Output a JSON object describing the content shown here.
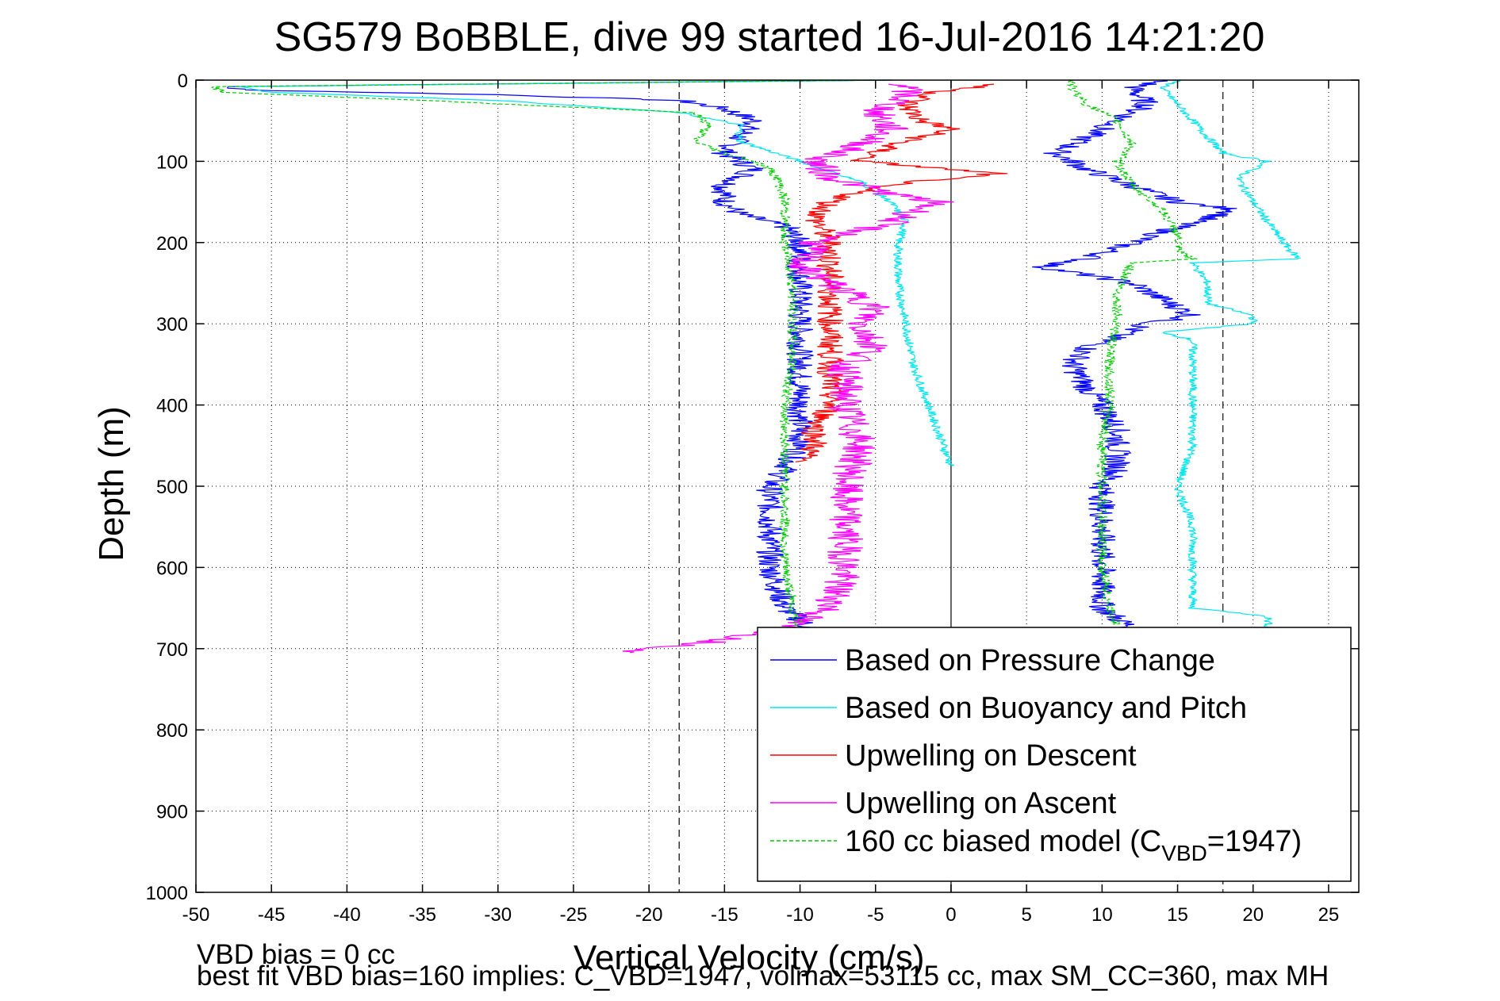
{
  "chart_data": {
    "type": "line",
    "title": "SG579 BoBBLE, dive 99 started 16-Jul-2016 14:21:20",
    "xlabel": "Vertical Velocity (cm/s)",
    "ylabel": "Depth (m)",
    "xlim": [
      -50,
      27
    ],
    "ylim": [
      0,
      1000
    ],
    "y_reversed": true,
    "grid": true,
    "x_ticks": [
      -50,
      -45,
      -40,
      -35,
      -30,
      -25,
      -20,
      -15,
      -10,
      -5,
      0,
      5,
      10,
      15,
      20,
      25
    ],
    "y_ticks": [
      0,
      100,
      200,
      300,
      400,
      500,
      600,
      700,
      800,
      900,
      1000
    ],
    "reference_lines": {
      "vertical_dashed": [
        -18,
        18
      ],
      "vertical_solid": [
        0
      ]
    },
    "legend_position": "lower-right",
    "series": [
      {
        "name": "Based on Pressure Change",
        "color": "#0000ff",
        "style": "solid",
        "jitter": 0.9,
        "descent": {
          "depth": [
            0,
            8,
            12,
            18,
            25,
            35,
            50,
            70,
            90,
            100,
            110,
            130,
            150,
            165,
            180,
            200,
            250,
            300,
            350,
            400,
            450,
            480,
            500,
            550,
            600,
            650,
            680
          ],
          "velocity": [
            -4,
            -48,
            -47,
            -30,
            -18,
            -15,
            -13,
            -14,
            -15,
            -14,
            -13,
            -15,
            -15,
            -14,
            -11,
            -10,
            -10,
            -10,
            -10,
            -10,
            -10,
            -11,
            -12,
            -12,
            -12,
            -11,
            -9
          ]
        },
        "ascent": {
          "depth": [
            0,
            10,
            30,
            50,
            70,
            90,
            110,
            130,
            150,
            160,
            175,
            200,
            220,
            230,
            250,
            270,
            290,
            300,
            330,
            350,
            380,
            400,
            430,
            450,
            480,
            500,
            550,
            600,
            650,
            675
          ],
          "velocity": [
            14,
            12,
            13,
            11,
            9,
            7,
            9,
            12,
            15,
            19,
            16,
            12,
            9,
            6,
            12,
            14,
            16,
            13,
            9,
            8,
            9,
            10,
            11,
            11,
            11,
            10,
            10,
            10,
            10,
            12
          ]
        }
      },
      {
        "name": "Based on Buoyancy and Pitch",
        "color": "#00e5ee",
        "style": "solid",
        "jitter": 0.3,
        "descent": {
          "depth": [
            0,
            8,
            15,
            25,
            40,
            55,
            75,
            100,
            125,
            150,
            175,
            200,
            250,
            300,
            350,
            400,
            450,
            475
          ],
          "velocity": [
            -4,
            -47,
            -45,
            -30,
            -18,
            -14,
            -14,
            -10,
            -6,
            -4,
            -3,
            -3.5,
            -3.5,
            -3,
            -2.5,
            -1.5,
            -0.5,
            0
          ]
        },
        "ascent": {
          "depth": [
            0,
            10,
            30,
            50,
            70,
            90,
            100,
            120,
            150,
            175,
            200,
            220,
            225,
            250,
            275,
            290,
            300,
            310,
            320,
            350,
            400,
            450,
            500,
            550,
            600,
            650,
            660,
            680
          ],
          "velocity": [
            15,
            14,
            15,
            16,
            17,
            18,
            21,
            19,
            20,
            21,
            22,
            23,
            16,
            17,
            17,
            20,
            20,
            14,
            16,
            16,
            16,
            16,
            15,
            16,
            16,
            16,
            21,
            21
          ]
        }
      },
      {
        "name": "Upwelling on Descent",
        "color": "#ff0000",
        "style": "solid",
        "jitter": 0.9,
        "descent": {
          "depth": [
            5,
            15,
            30,
            50,
            60,
            80,
            100,
            110,
            115,
            130,
            150,
            170,
            200,
            250,
            300,
            350,
            400,
            430,
            450,
            470
          ],
          "velocity": [
            3,
            -1,
            -3,
            -2,
            0,
            -4,
            -6,
            0,
            3,
            -5,
            -8,
            -9,
            -8,
            -8,
            -8,
            -8,
            -8,
            -9,
            -9,
            -10
          ]
        }
      },
      {
        "name": "Upwelling on Ascent",
        "color": "#ff00ff",
        "style": "solid",
        "jitter": 1.2,
        "ascent": {
          "depth": [
            5,
            20,
            40,
            60,
            80,
            100,
            120,
            140,
            150,
            175,
            200,
            230,
            250,
            280,
            300,
            330,
            350,
            400,
            450,
            500,
            550,
            600,
            650,
            680,
            695,
            705
          ],
          "velocity": [
            -3,
            -3,
            -5,
            -4,
            -6,
            -9,
            -8,
            -4,
            -1,
            -4,
            -9,
            -10,
            -8,
            -5,
            -6,
            -5,
            -7,
            -7,
            -6,
            -7,
            -7,
            -7,
            -8,
            -12,
            -17,
            -22
          ]
        }
      },
      {
        "name": "160 cc biased model (C_VBD=1947)",
        "color": "#00cc00",
        "style": "dashed",
        "jitter": 0.35,
        "descent": {
          "depth": [
            0,
            8,
            15,
            25,
            40,
            55,
            75,
            90,
            100,
            110,
            120,
            150,
            180,
            200,
            250,
            300,
            350,
            400,
            450,
            500,
            550,
            600,
            650,
            680
          ],
          "velocity": [
            -4,
            -49,
            -48,
            -35,
            -17,
            -16,
            -17,
            -15,
            -13,
            -12,
            -11.5,
            -11,
            -11,
            -11,
            -10.5,
            -10.5,
            -10.5,
            -11,
            -11,
            -11,
            -11,
            -11,
            -10.5,
            -10
          ]
        },
        "ascent": {
          "depth": [
            0,
            10,
            30,
            50,
            80,
            100,
            130,
            160,
            190,
            210,
            220,
            225,
            260,
            300,
            330,
            360,
            400,
            450,
            500,
            550,
            600,
            650,
            670
          ],
          "velocity": [
            8,
            8,
            9,
            11,
            12,
            11,
            12,
            14,
            15,
            15,
            16,
            12,
            11,
            11,
            10.5,
            10.5,
            10.5,
            10,
            10,
            10,
            10,
            10.5,
            11
          ]
        }
      }
    ],
    "legend": [
      "Based on Pressure Change",
      "Based on Buoyancy and Pitch",
      "Upwelling on Descent",
      "Upwelling on Ascent",
      "160 cc biased model (C"
    ],
    "legend_subscript": {
      "base": "160 cc biased model (C",
      "sub": "VBD",
      "rest": "=1947)"
    }
  },
  "footer": {
    "line1": "VBD bias = 0 cc",
    "line2": "best fit VBD bias=160 implies: C_VBD=1947, volmax=53115 cc, max SM_CC=360, max MH"
  },
  "colors": {
    "background": "#ffffff",
    "axes": "#000000",
    "grid": "#000000"
  }
}
